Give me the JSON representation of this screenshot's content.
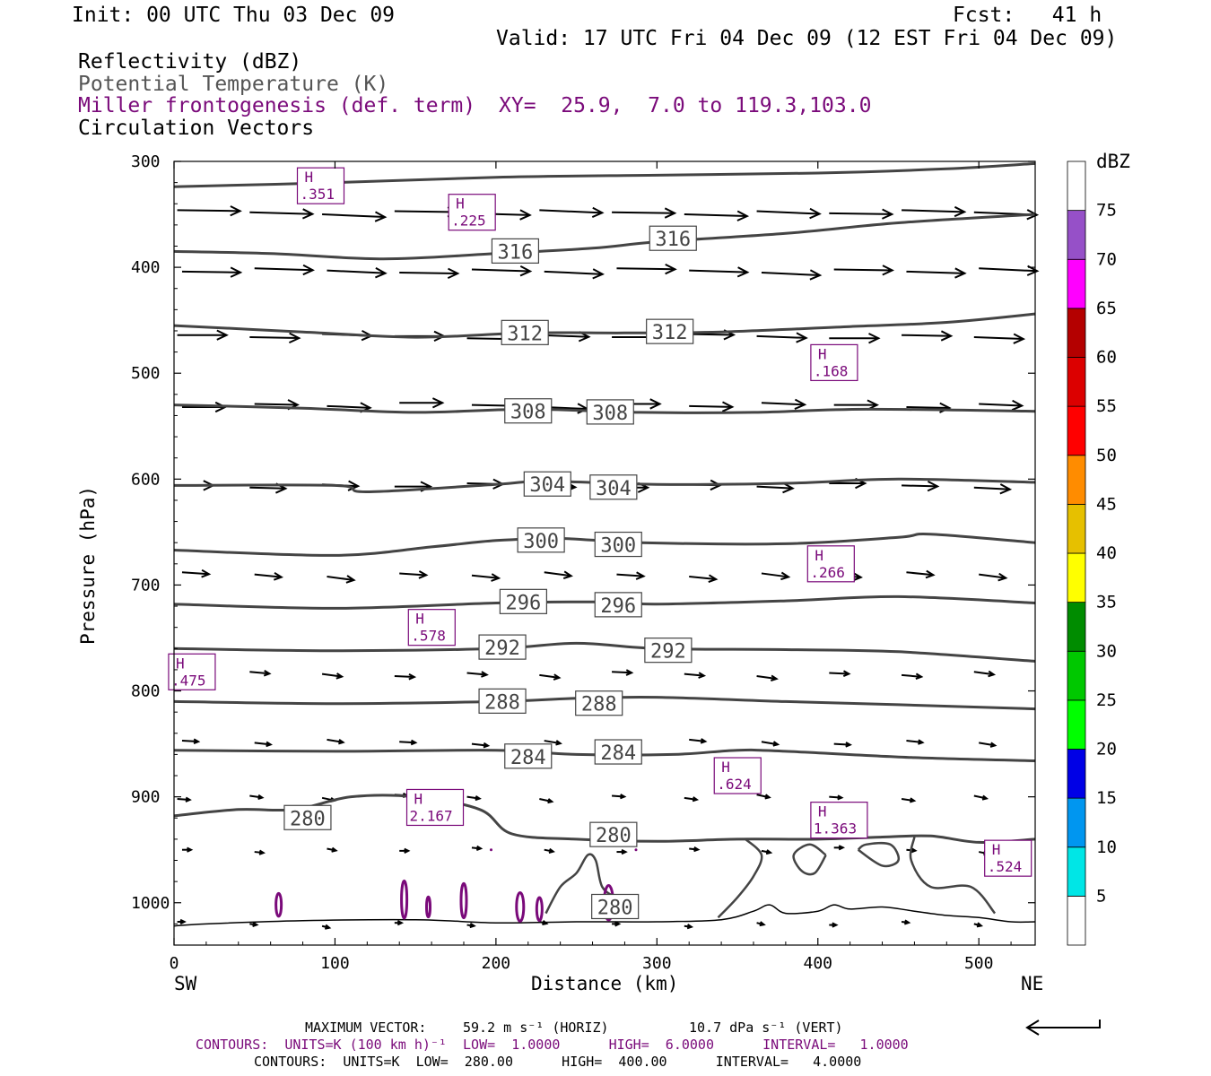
{
  "header": {
    "init": "Init: 00 UTC Thu 03 Dec 09",
    "fcst": "Fcst:   41 h",
    "valid": "Valid: 17 UTC Fri 04 Dec 09 (12 EST Fri 04 Dec 09)"
  },
  "legend": {
    "field1": "Reflectivity (dBZ)",
    "field2": "Potential Temperature (K)",
    "field3": "Miller frontogenesis (def. term)",
    "field4": "Circulation Vectors",
    "xy": "XY=  25.9,  7.0 to 119.3,103.0"
  },
  "colors": {
    "theta_contour": "#444444",
    "frontogenesis": "#7a0a7a",
    "vector": "#000000"
  },
  "chart_data": {
    "type": "cross-section",
    "xlabel": "Distance (km)",
    "ylabel": "Pressure (hPa)",
    "xlim": [
      0,
      535
    ],
    "ylim": [
      1040,
      300
    ],
    "x_ticks": [
      0,
      100,
      200,
      300,
      400,
      500
    ],
    "y_ticks": [
      300,
      400,
      500,
      600,
      700,
      800,
      900,
      1000
    ],
    "x_end_labels": {
      "left": "SW",
      "right": "NE"
    },
    "colorbar": {
      "unit": "dBZ",
      "levels": [
        5,
        10,
        15,
        20,
        25,
        30,
        35,
        40,
        45,
        50,
        55,
        60,
        65,
        70,
        75
      ],
      "colors": [
        "#ffffff",
        "#00e6e6",
        "#0096f0",
        "#0000e6",
        "#00ff00",
        "#00c800",
        "#008c00",
        "#ffff00",
        "#e6c000",
        "#ff8c00",
        "#ff0000",
        "#dc0000",
        "#b40000",
        "#ff00ff",
        "#9650c8",
        "#ffffff"
      ]
    },
    "theta_contours": [
      {
        "value": 320,
        "points": [
          [
            0,
            324
          ],
          [
            100,
            320
          ],
          [
            200,
            315
          ],
          [
            300,
            313
          ],
          [
            400,
            311
          ],
          [
            480,
            307
          ],
          [
            535,
            302
          ]
        ]
      },
      {
        "value": 316,
        "points": [
          [
            0,
            385
          ],
          [
            60,
            387
          ],
          [
            130,
            392
          ],
          [
            200,
            387
          ],
          [
            260,
            382
          ],
          [
            300,
            376
          ],
          [
            380,
            368
          ],
          [
            450,
            358
          ],
          [
            535,
            350
          ]
        ]
      },
      {
        "value": 312,
        "points": [
          [
            0,
            455
          ],
          [
            80,
            461
          ],
          [
            150,
            466
          ],
          [
            220,
            462
          ],
          [
            280,
            462
          ],
          [
            340,
            461
          ],
          [
            420,
            456
          ],
          [
            480,
            452
          ],
          [
            535,
            444
          ]
        ]
      },
      {
        "value": 308,
        "points": [
          [
            0,
            530
          ],
          [
            80,
            533
          ],
          [
            150,
            537
          ],
          [
            220,
            534
          ],
          [
            290,
            537
          ],
          [
            360,
            537
          ],
          [
            430,
            534
          ],
          [
            535,
            536
          ]
        ]
      },
      {
        "value": 304,
        "points": [
          [
            0,
            606
          ],
          [
            100,
            606
          ],
          [
            120,
            612
          ],
          [
            200,
            605
          ],
          [
            230,
            602
          ],
          [
            300,
            605
          ],
          [
            380,
            604
          ],
          [
            450,
            600
          ],
          [
            535,
            603
          ]
        ]
      },
      {
        "value": 300,
        "points": [
          [
            0,
            667
          ],
          [
            100,
            672
          ],
          [
            160,
            664
          ],
          [
            200,
            658
          ],
          [
            240,
            656
          ],
          [
            290,
            660
          ],
          [
            380,
            661
          ],
          [
            450,
            655
          ],
          [
            470,
            652
          ],
          [
            535,
            660
          ]
        ]
      },
      {
        "value": 296,
        "points": [
          [
            0,
            718
          ],
          [
            100,
            722
          ],
          [
            200,
            717
          ],
          [
            260,
            716
          ],
          [
            300,
            718
          ],
          [
            380,
            715
          ],
          [
            450,
            711
          ],
          [
            535,
            717
          ]
        ]
      },
      {
        "value": 292,
        "points": [
          [
            0,
            760
          ],
          [
            100,
            762
          ],
          [
            200,
            760
          ],
          [
            250,
            755
          ],
          [
            300,
            760
          ],
          [
            380,
            761
          ],
          [
            450,
            763
          ],
          [
            535,
            772
          ]
        ]
      },
      {
        "value": 288,
        "points": [
          [
            0,
            810
          ],
          [
            100,
            812
          ],
          [
            200,
            810
          ],
          [
            250,
            807
          ],
          [
            300,
            806
          ],
          [
            380,
            810
          ],
          [
            450,
            813
          ],
          [
            535,
            817
          ]
        ]
      },
      {
        "value": 284,
        "points": [
          [
            0,
            856
          ],
          [
            100,
            857
          ],
          [
            200,
            856
          ],
          [
            250,
            860
          ],
          [
            310,
            860
          ],
          [
            350,
            856
          ],
          [
            380,
            857
          ],
          [
            460,
            863
          ],
          [
            535,
            866
          ]
        ]
      },
      {
        "value": 280,
        "points": [
          [
            0,
            918
          ],
          [
            40,
            912
          ],
          [
            75,
            912
          ],
          [
            110,
            900
          ],
          [
            150,
            900
          ],
          [
            190,
            912
          ],
          [
            210,
            935
          ],
          [
            250,
            940
          ],
          [
            300,
            942
          ],
          [
            350,
            940
          ],
          [
            400,
            940
          ],
          [
            440,
            938
          ],
          [
            470,
            937
          ],
          [
            500,
            943
          ],
          [
            535,
            940
          ]
        ]
      }
    ],
    "theta_labels": [
      {
        "value": "316",
        "x": 212,
        "p": 385
      },
      {
        "value": "316",
        "x": 310,
        "p": 373
      },
      {
        "value": "312",
        "x": 218,
        "p": 462
      },
      {
        "value": "312",
        "x": 308,
        "p": 461
      },
      {
        "value": "308",
        "x": 220,
        "p": 536
      },
      {
        "value": "308",
        "x": 271,
        "p": 537
      },
      {
        "value": "304",
        "x": 232,
        "p": 605
      },
      {
        "value": "304",
        "x": 273,
        "p": 608
      },
      {
        "value": "300",
        "x": 228,
        "p": 658
      },
      {
        "value": "300",
        "x": 276,
        "p": 662
      },
      {
        "value": "296",
        "x": 217,
        "p": 716
      },
      {
        "value": "296",
        "x": 276,
        "p": 719
      },
      {
        "value": "292",
        "x": 204,
        "p": 759
      },
      {
        "value": "292",
        "x": 307,
        "p": 762
      },
      {
        "value": "288",
        "x": 204,
        "p": 810
      },
      {
        "value": "288",
        "x": 264,
        "p": 812
      },
      {
        "value": "284",
        "x": 220,
        "p": 862
      },
      {
        "value": "284",
        "x": 276,
        "p": 858
      },
      {
        "value": "280",
        "x": 83,
        "p": 920
      },
      {
        "value": "280",
        "x": 273,
        "p": 936
      },
      {
        "value": "280",
        "x": 274,
        "p": 1004
      }
    ],
    "frontogenesis_highs": [
      {
        "value": ".351",
        "x": 90,
        "p": 323
      },
      {
        "value": ".225",
        "x": 184,
        "p": 348
      },
      {
        "value": ".168",
        "x": 409,
        "p": 490
      },
      {
        "value": ".266",
        "x": 407,
        "p": 680
      },
      {
        "value": ".578",
        "x": 159,
        "p": 740
      },
      {
        "value": ".475",
        "x": 10,
        "p": 782
      },
      {
        "value": ".624",
        "x": 349,
        "p": 880
      },
      {
        "value": "2.167",
        "x": 158,
        "p": 910
      },
      {
        "value": "1.363",
        "x": 409,
        "p": 922
      },
      {
        "value": ".524",
        "x": 517,
        "p": 958
      }
    ]
  },
  "footer": {
    "maxvec_label": "MAXIMUM VECTOR:",
    "maxvec_horiz": "59.2 m s⁻¹ (HORIZ)",
    "maxvec_vert": "10.7 dPa s⁻¹ (VERT)",
    "contours1": "CONTOURS:  UNITS=K (100 km h)⁻¹  LOW=  1.0000      HIGH=  6.0000      INTERVAL=   1.0000",
    "contours2": "CONTOURS:  UNITS=K  LOW=  280.00      HIGH=  400.00      INTERVAL=   4.0000"
  }
}
